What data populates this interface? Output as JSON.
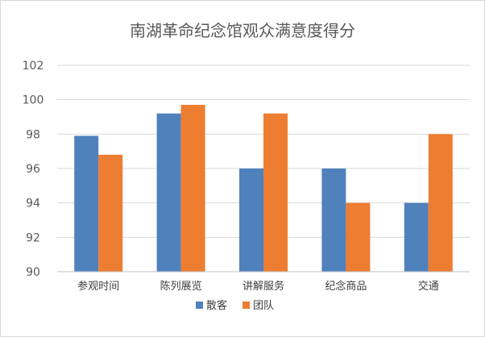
{
  "chart_data": {
    "type": "bar",
    "title": "南湖革命纪念馆观众满意度得分",
    "categories": [
      "参观时间",
      "陈列展览",
      "讲解服务",
      "纪念商品",
      "交通"
    ],
    "series": [
      {
        "name": "散客",
        "color": "#4f81bd",
        "values": [
          97.9,
          99.2,
          96.0,
          96.0,
          94.0
        ]
      },
      {
        "name": "团队",
        "color": "#ed7d31",
        "values": [
          96.8,
          99.7,
          99.2,
          94.0,
          98.0
        ]
      }
    ],
    "yticks": [
      "90",
      "92",
      "94",
      "96",
      "98",
      "100",
      "102"
    ],
    "ylim": [
      90,
      102
    ],
    "grid": true,
    "legend_position": "bottom"
  }
}
